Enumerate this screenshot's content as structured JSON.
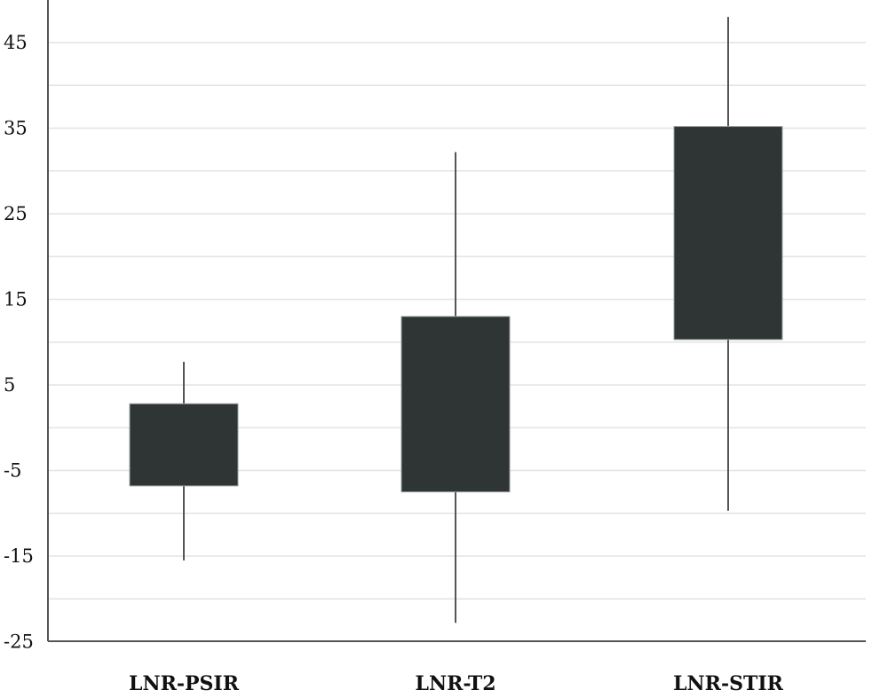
{
  "chart_data": {
    "type": "box",
    "title": "",
    "xlabel": "",
    "ylabel": "",
    "ylim": [
      -25,
      48
    ],
    "yticks": [
      -25,
      -15,
      -5,
      5,
      15,
      25,
      35,
      45
    ],
    "grid": true,
    "categories": [
      "LNR-PSIR",
      "LNR-T2",
      "LNR-STIR"
    ],
    "boxes": [
      {
        "category": "LNR-PSIR",
        "whisker_low": -15.5,
        "q1": -6.8,
        "q3": 2.8,
        "whisker_high": 7.7
      },
      {
        "category": "LNR-T2",
        "whisker_low": -22.8,
        "q1": -7.5,
        "q3": 13.0,
        "whisker_high": 32.2
      },
      {
        "category": "LNR-STIR",
        "whisker_low": -9.7,
        "q1": 10.3,
        "q3": 35.2,
        "whisker_high": 48.0
      }
    ],
    "colors": {
      "box_fill": "#2f3535",
      "whisker": "#555555",
      "grid": "#e3e3e3",
      "axis": "#555555"
    }
  }
}
